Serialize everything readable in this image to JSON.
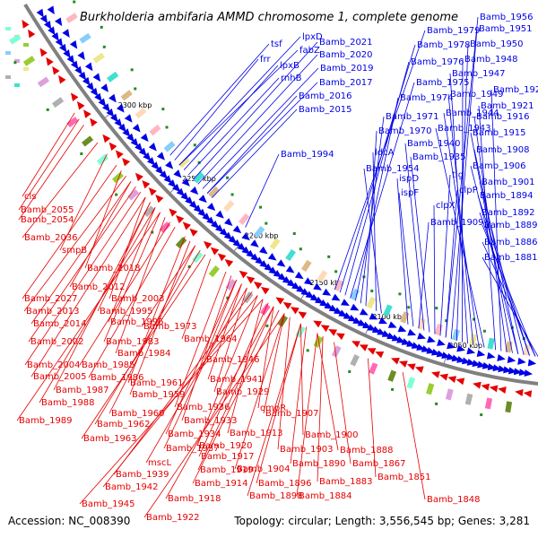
{
  "title": "Burkholderia ambifaria AMMD chromosome 1, complete genome",
  "footer": {
    "accession": "Accession: NC_008390",
    "summary": "Topology: circular; Length: 3,556,545 bp; Genes: 3,281"
  },
  "colors": {
    "forward": "#0000e6",
    "reverse": "#e60000",
    "backbone": "#808080",
    "marker": "#228b22"
  },
  "kbp_marks": [
    "2300 kbp",
    "2250 kbp",
    "2200 kbp",
    "2150 kbp",
    "2100 kbp",
    "2050 kbp"
  ],
  "blue_labels": [
    "lpxD",
    "tsf",
    "fabZ",
    "frr",
    "lpxB",
    "rnhB",
    "Bamb_2021",
    "Bamb_2020",
    "Bamb_2019",
    "Bamb_2017",
    "Bamb_2016",
    "Bamb_2015",
    "Bamb_1994",
    "Bamb_1956",
    "Bamb_1979",
    "Bamb_1951",
    "Bamb_1978",
    "Bamb_1950",
    "Bamb_1976",
    "Bamb_1948",
    "Bamb_1947",
    "Bamb_1975",
    "Bamb_1949",
    "Bamb_1923",
    "Bamb_1974",
    "Bamb_1921",
    "Bamb_1944",
    "Bamb_1971",
    "Bamb_1916",
    "Bamb_1943",
    "Bamb_1970",
    "Bamb_1915",
    "Bamb_1940",
    "ldcA",
    "Bamb_1908",
    "Bamb_1935",
    "Bamb_1954",
    "Bamb_1906",
    "ispD",
    "tig",
    "Bamb_1901",
    "ispF",
    "clpP",
    "Bamb_1894",
    "clpX",
    "Bamb_1892",
    "Bamb_1909",
    "Bamb_1889",
    "Bamb_1886",
    "Bamb_1881"
  ],
  "red_labels": [
    "cls",
    "Bamb_2055",
    "Bamb_2054",
    "Bamb_2036",
    "smpB",
    "Bamb_2018",
    "Bamb_2012",
    "Bamb_2027",
    "Bamb_2003",
    "Bamb_2013",
    "Bamb_1995",
    "Bamb_2014",
    "Bamb_1996",
    "Bamb_1973",
    "Bamb_1964",
    "Bamb_2002",
    "Bamb_1983",
    "Bamb_1984",
    "Bamb_2004",
    "Bamb_1985",
    "Bamb_2005",
    "Bamb_1986",
    "Bamb_1946",
    "Bamb_1987",
    "Bamb_1961",
    "Bamb_1941",
    "Bamb_1988",
    "Bamb_1959",
    "Bamb_1929",
    "Bamb_1989",
    "Bamb_1960",
    "Bamb_1936",
    "ompR",
    "Bamb_1962",
    "Bamb_1933",
    "Bamb_1907",
    "Bamb_1963",
    "Bamb_1934",
    "Bamb_1913",
    "Bamb_1900",
    "Bamb_1937",
    "Bamb_1920",
    "Bamb_1903",
    "Bamb_1888",
    "mscL",
    "Bamb_1917",
    "Bamb_1890",
    "Bamb_1867",
    "Bamb_1919",
    "Bamb_1904",
    "Bamb_1939",
    "Bamb_1914",
    "Bamb_1896",
    "Bamb_1883",
    "Bamb_1851",
    "Bamb_1942",
    "Bamb_1898",
    "Bamb_1884",
    "Bamb_1918",
    "Bamb_1945",
    "Bamb_1848",
    "Bamb_1922"
  ]
}
